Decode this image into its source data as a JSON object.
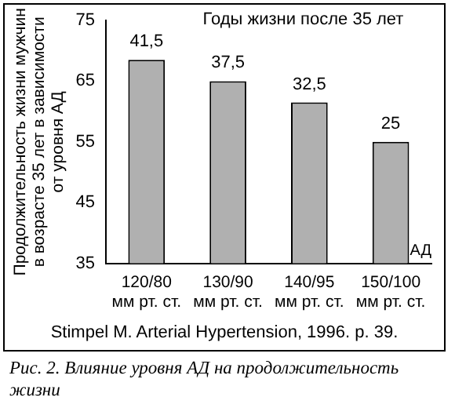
{
  "chart_data": {
    "type": "bar",
    "title": "Годы жизни после 35 лет",
    "ylabel": "Продолжительность жизни мужчин\nв возрасте 35 лет в зависимости\nот уровня АД",
    "xlabel": "АД",
    "categories": [
      "120/80\nмм рт. ст.",
      "130/90\nмм рт. ст.",
      "140/95\nмм рт. ст.",
      "150/100\nмм рт. ст."
    ],
    "values": [
      68.5,
      65,
      61.5,
      55
    ],
    "color": "#b0b0b0",
    "ylim": [
      35,
      75
    ],
    "yticks": [
      35,
      45,
      55,
      65,
      75
    ],
    "grid": false,
    "legend": false,
    "annotations": [
      {
        "text": "41,5",
        "x": "120/80\nмм рт. ст.",
        "y": 68.5
      },
      {
        "text": "37,5",
        "x": "130/90\nмм рт. ст.",
        "y": 65
      },
      {
        "text": "32,5",
        "x": "140/95\nмм рт. ст.",
        "y": 61.5
      },
      {
        "text": "25",
        "x": "150/100\nмм рт. ст.",
        "y": 55
      },
      "Stimpel M. Arterial Hypertension, 1996.  p. 39.",
      "Рис. 2.  Влияние уровня АД на продолжительность жизни"
    ]
  }
}
